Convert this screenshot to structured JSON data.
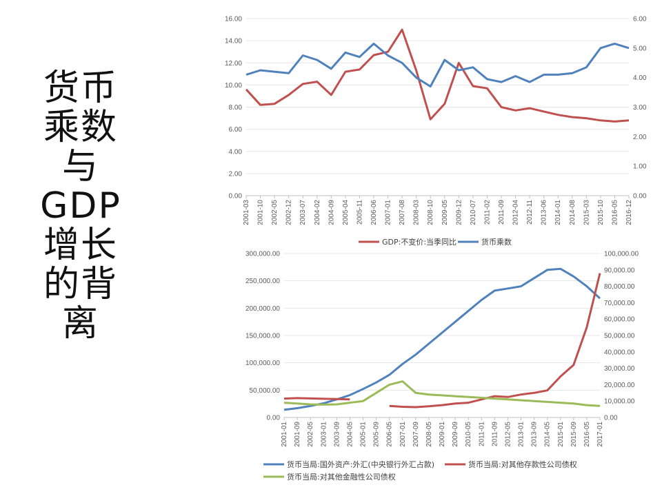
{
  "slide": {
    "title_lines": [
      "货币",
      "乘数",
      "与",
      "GDP",
      "增长",
      "的背",
      "离"
    ]
  },
  "chart_data": [
    {
      "type": "line",
      "title": "",
      "x": [
        "2001-03",
        "2001-10",
        "2002-05",
        "2002-12",
        "2003-07",
        "2004-02",
        "2004-09",
        "2005-04",
        "2005-11",
        "2006-06",
        "2007-01",
        "2007-08",
        "2008-03",
        "2008-10",
        "2009-05",
        "2009-12",
        "2010-07",
        "2011-02",
        "2011-09",
        "2012-04",
        "2012-11",
        "2013-06",
        "2014-01",
        "2014-08",
        "2015-03",
        "2015-10",
        "2016-05",
        "2016-12"
      ],
      "y_left": {
        "ylim": [
          0,
          16
        ],
        "ticks": [
          "0.00",
          "2.00",
          "4.00",
          "6.00",
          "8.00",
          "10.00",
          "12.00",
          "14.00",
          "16.00"
        ]
      },
      "y_right": {
        "ylim": [
          0,
          6
        ],
        "ticks": [
          "0.00",
          "1.00",
          "2.00",
          "3.00",
          "4.00",
          "5.00",
          "6.00"
        ]
      },
      "legend_position": "bottom",
      "series": [
        {
          "name": "GDP:不变价:当季同比",
          "color": "#c0504d",
          "axis": "left",
          "values": [
            9.6,
            8.2,
            8.3,
            9.1,
            10.1,
            10.3,
            9.1,
            11.2,
            11.4,
            12.7,
            13.0,
            15.0,
            11.3,
            6.9,
            8.3,
            12.0,
            9.9,
            9.7,
            8.0,
            7.7,
            7.9,
            7.6,
            7.3,
            7.1,
            7.0,
            6.8,
            6.7,
            6.8
          ]
        },
        {
          "name": "货币乘数",
          "color": "#4f81bd",
          "axis": "right",
          "values": [
            4.1,
            4.25,
            4.2,
            4.15,
            4.75,
            4.6,
            4.3,
            4.85,
            4.7,
            5.15,
            4.75,
            4.5,
            4.0,
            3.7,
            4.6,
            4.25,
            4.35,
            3.95,
            3.85,
            4.05,
            3.85,
            4.1,
            4.1,
            4.15,
            4.35,
            5.0,
            5.15,
            5.0
          ]
        }
      ]
    },
    {
      "type": "line",
      "title": "",
      "x": [
        "2001-01",
        "2001-09",
        "2002-05",
        "2003-01",
        "2003-09",
        "2004-05",
        "2005-01",
        "2005-09",
        "2006-05",
        "2007-01",
        "2007-09",
        "2008-05",
        "2009-01",
        "2009-09",
        "2010-05",
        "2011-01",
        "2011-09",
        "2012-05",
        "2013-01",
        "2013-09",
        "2014-05",
        "2015-01",
        "2015-09",
        "2016-05",
        "2017-01"
      ],
      "y_left": {
        "ylim": [
          0,
          300000
        ],
        "ticks": [
          "0.00",
          "50,000.00",
          "100,000.00",
          "150,000.00",
          "200,000.00",
          "250,000.00",
          "300,000.00"
        ]
      },
      "y_right": {
        "ylim": [
          0,
          100000
        ],
        "ticks": [
          "0.00",
          "10,000.00",
          "20,000.00",
          "30,000.00",
          "40,000.00",
          "50,000.00",
          "60,000.00",
          "70,000.00",
          "80,000.00",
          "90,000.00",
          "100,000.00"
        ]
      },
      "legend_position": "bottom",
      "series": [
        {
          "name": "货币当局:国外资产:外汇(中央银行外汇占款)",
          "color": "#4f81bd",
          "axis": "left",
          "values": [
            14000,
            17000,
            21000,
            26000,
            33000,
            41000,
            52000,
            64000,
            78000,
            98000,
            115000,
            135000,
            155000,
            175000,
            195000,
            215000,
            232000,
            236000,
            240000,
            255000,
            270000,
            272000,
            258000,
            240000,
            218000
          ]
        },
        {
          "name": "货币当局:对其他存款性公司债权",
          "color": "#c0504d",
          "axis": "right",
          "values": [
            11500,
            11800,
            11600,
            11400,
            11200,
            11000,
            null,
            null,
            7000,
            6500,
            6300,
            6800,
            7500,
            8500,
            9000,
            11000,
            13000,
            12500,
            14000,
            15000,
            16500,
            25000,
            32000,
            55000,
            88000
          ]
        },
        {
          "name": "货币当局:对其他金融性公司债权",
          "color": "#9bbb59",
          "axis": "right",
          "values": [
            9000,
            8500,
            8000,
            7800,
            8000,
            9000,
            10000,
            15000,
            20000,
            22000,
            15000,
            14000,
            13500,
            13000,
            12500,
            12000,
            11500,
            11000,
            10500,
            10000,
            9500,
            9000,
            8500,
            7500,
            7000
          ]
        }
      ]
    }
  ]
}
